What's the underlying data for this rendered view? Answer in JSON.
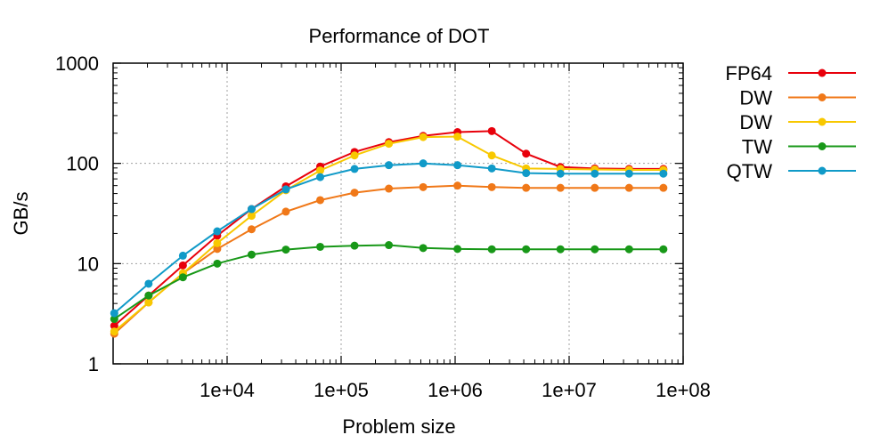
{
  "chart_data": {
    "type": "line",
    "title": "Performance of DOT",
    "xlabel": "Problem size",
    "ylabel": "GB/s",
    "xscale": "log",
    "yscale": "log",
    "xlim": [
      1000,
      100000000
    ],
    "ylim": [
      1,
      1000
    ],
    "grid": true,
    "legend_position": "right",
    "x_ticks": [
      {
        "value": 10000,
        "label": "1e+04"
      },
      {
        "value": 100000,
        "label": "1e+05"
      },
      {
        "value": 1000000,
        "label": "1e+06"
      },
      {
        "value": 10000000,
        "label": "1e+07"
      },
      {
        "value": 100000000,
        "label": "1e+08"
      }
    ],
    "y_ticks": [
      {
        "value": 1,
        "label": "1"
      },
      {
        "value": 10,
        "label": "10"
      },
      {
        "value": 100,
        "label": "100"
      },
      {
        "value": 1000,
        "label": "1000"
      }
    ],
    "x": [
      1024,
      2048,
      4096,
      8192,
      16384,
      32768,
      65536,
      131072,
      262144,
      524288,
      1048576,
      2097152,
      4194304,
      8388608,
      16777216,
      33554432,
      67108864
    ],
    "series": [
      {
        "name": "FP64",
        "color": "#e8000b",
        "values": [
          2.4,
          4.8,
          9.6,
          19,
          35,
          59,
          93,
          130,
          163,
          188,
          205,
          210,
          125,
          92,
          89,
          88,
          88
        ]
      },
      {
        "name": "DW",
        "color": "#f07818",
        "values": [
          2.0,
          4.1,
          8.0,
          14,
          22,
          33,
          43,
          51,
          56,
          58,
          60,
          58,
          57,
          57,
          57,
          57,
          57
        ]
      },
      {
        "name": "DW",
        "color": "#f8c800",
        "values": [
          2.1,
          4.1,
          8.0,
          16,
          30,
          54,
          85,
          120,
          157,
          183,
          185,
          120,
          89,
          88,
          87,
          86,
          86
        ]
      },
      {
        "name": "TW",
        "color": "#189818",
        "values": [
          2.8,
          4.8,
          7.3,
          10,
          12.3,
          13.8,
          14.7,
          15.1,
          15.3,
          14.3,
          14.0,
          13.9,
          13.9,
          13.9,
          13.9,
          13.9,
          13.9
        ]
      },
      {
        "name": "QTW",
        "color": "#109ac8",
        "values": [
          3.2,
          6.3,
          12,
          21,
          35,
          55,
          73,
          88,
          96,
          100,
          96,
          89,
          80,
          79,
          79,
          79,
          79
        ]
      }
    ]
  }
}
